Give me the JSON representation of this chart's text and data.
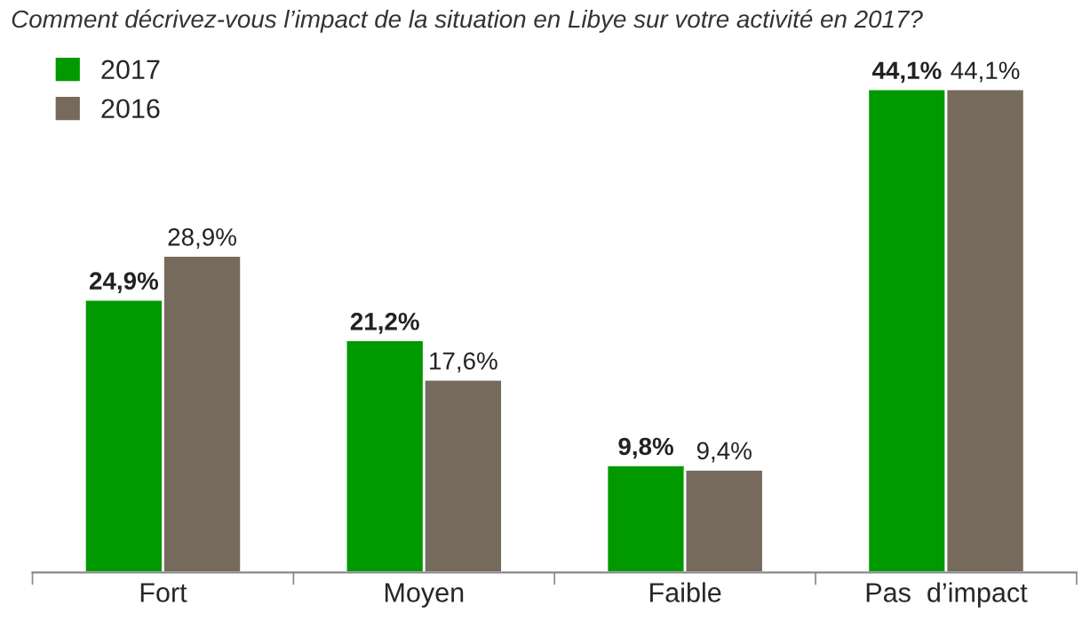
{
  "chart_data": {
    "type": "bar",
    "title": "Comment décrivez-vous l’impact de la situation en Libye sur votre activité en 2017?",
    "categories": [
      "Fort",
      "Moyen",
      "Faible",
      "Pas  d’impact"
    ],
    "series": [
      {
        "name": "2017",
        "color": "#009900",
        "values": [
          24.9,
          21.2,
          9.8,
          44.1
        ],
        "value_labels": [
          "24,9%",
          "21,2%",
          "9,8%",
          "44,1%"
        ]
      },
      {
        "name": "2016",
        "color": "#766a5c",
        "values": [
          28.9,
          17.6,
          9.4,
          44.1
        ],
        "value_labels": [
          "28,9%",
          "17,6%",
          "9,4%",
          "44,1%"
        ]
      }
    ],
    "legend": "top left",
    "grid": false
  }
}
